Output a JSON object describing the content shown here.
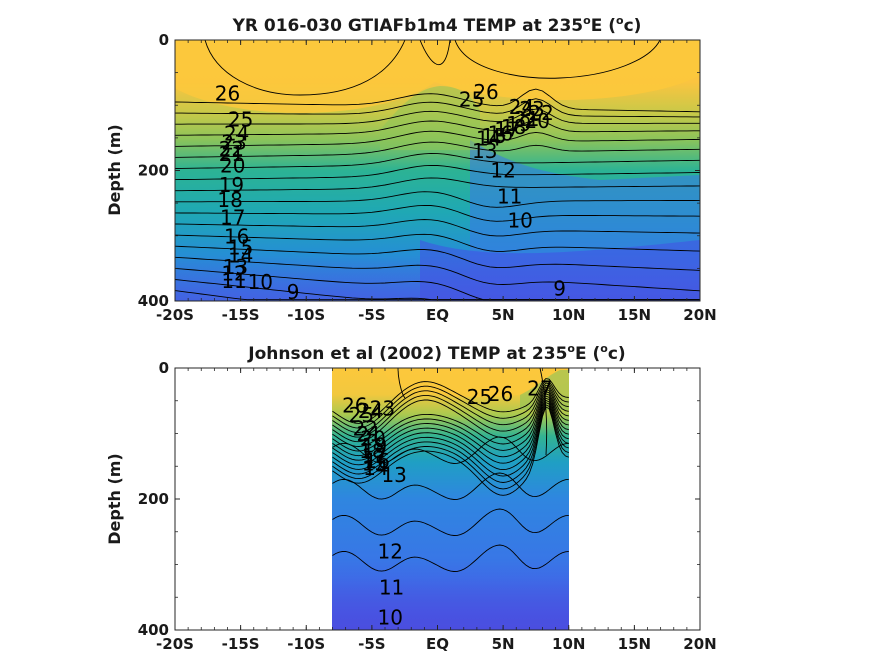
{
  "colors": {
    "warm": "#fcc83c",
    "mid_green": "#8cc45a",
    "teal": "#22b0a0",
    "blue": "#3a78e6",
    "deep": "#4a4ee0"
  },
  "chart_data": [
    {
      "type": "heatmap",
      "subtype": "filled-contour",
      "title": "YR 016-030 GTIAFb1m4 TEMP at 235",
      "title_sup": "o",
      "title_after_sup": "E (",
      "title_sup2": "o",
      "title_end": "c)",
      "ylabel": "Depth (m)",
      "xlabel": "",
      "x_ticks": [
        "-20S",
        "-15S",
        "-10S",
        "-5S",
        "EQ",
        "5N",
        "10N",
        "15N",
        "20N"
      ],
      "y_ticks": [
        "0",
        "200",
        "400"
      ],
      "xlim": [
        -20,
        20
      ],
      "ylim": [
        400,
        0
      ],
      "grid": false,
      "data_x_range": [
        -20,
        20
      ],
      "contour_labels": [
        {
          "text": "26",
          "lat": -16,
          "depth": 82
        },
        {
          "text": "25",
          "lat": -15,
          "depth": 122
        },
        {
          "text": "24",
          "lat": -15.3,
          "depth": 143
        },
        {
          "text": "23",
          "lat": -15.5,
          "depth": 157
        },
        {
          "text": "22",
          "lat": -15.7,
          "depth": 167
        },
        {
          "text": "21",
          "lat": -15.7,
          "depth": 175
        },
        {
          "text": "20",
          "lat": -15.6,
          "depth": 192
        },
        {
          "text": "19",
          "lat": -15.7,
          "depth": 222
        },
        {
          "text": "18",
          "lat": -15.8,
          "depth": 245
        },
        {
          "text": "17",
          "lat": -15.6,
          "depth": 272
        },
        {
          "text": "16",
          "lat": -15.3,
          "depth": 301
        },
        {
          "text": "15",
          "lat": -15,
          "depth": 318
        },
        {
          "text": "14",
          "lat": -15,
          "depth": 330
        },
        {
          "text": "13",
          "lat": -15.4,
          "depth": 348
        },
        {
          "text": "12",
          "lat": -15.5,
          "depth": 358
        },
        {
          "text": "11",
          "lat": -15.5,
          "depth": 369
        },
        {
          "text": "10",
          "lat": -13.5,
          "depth": 371
        },
        {
          "text": "9",
          "lat": -11,
          "depth": 386
        },
        {
          "text": "26",
          "lat": 3.7,
          "depth": 80
        },
        {
          "text": "25",
          "lat": 2.6,
          "depth": 91
        },
        {
          "text": "24",
          "lat": 6.4,
          "depth": 103
        },
        {
          "text": "23",
          "lat": 7.2,
          "depth": 106
        },
        {
          "text": "22",
          "lat": 7.9,
          "depth": 112
        },
        {
          "text": "21",
          "lat": 6.8,
          "depth": 121
        },
        {
          "text": "20",
          "lat": 7.6,
          "depth": 124
        },
        {
          "text": "19",
          "lat": 6.2,
          "depth": 129
        },
        {
          "text": "18",
          "lat": 5.8,
          "depth": 133
        },
        {
          "text": "17",
          "lat": 5.3,
          "depth": 137
        },
        {
          "text": "16",
          "lat": 4.8,
          "depth": 143
        },
        {
          "text": "15",
          "lat": 4.3,
          "depth": 147
        },
        {
          "text": "14",
          "lat": 3.9,
          "depth": 151
        },
        {
          "text": "13",
          "lat": 3.6,
          "depth": 170
        },
        {
          "text": "12",
          "lat": 5,
          "depth": 200
        },
        {
          "text": "11",
          "lat": 5.5,
          "depth": 240
        },
        {
          "text": "10",
          "lat": 6.3,
          "depth": 277
        },
        {
          "text": "9",
          "lat": 9.3,
          "depth": 381
        }
      ]
    },
    {
      "type": "heatmap",
      "subtype": "filled-contour",
      "title": "Johnson et al (2002) TEMP at 235",
      "title_sup": "o",
      "title_after_sup": "E (",
      "title_sup2": "o",
      "title_end": "c)",
      "ylabel": "Depth (m)",
      "xlabel": "",
      "x_ticks": [
        "-20S",
        "-15S",
        "-10S",
        "-5S",
        "EQ",
        "5N",
        "10N",
        "15N",
        "20N"
      ],
      "y_ticks": [
        "0",
        "200",
        "400"
      ],
      "xlim": [
        -20,
        20
      ],
      "ylim": [
        400,
        0
      ],
      "grid": false,
      "data_x_range": [
        -8,
        10
      ],
      "contour_labels": [
        {
          "text": "26",
          "lat": -6.3,
          "depth": 57
        },
        {
          "text": "25",
          "lat": -5.8,
          "depth": 72
        },
        {
          "text": "24",
          "lat": -5.1,
          "depth": 66
        },
        {
          "text": "23",
          "lat": -4.2,
          "depth": 62
        },
        {
          "text": "22",
          "lat": -5.5,
          "depth": 92
        },
        {
          "text": "21",
          "lat": -5.2,
          "depth": 101
        },
        {
          "text": "20",
          "lat": -4.9,
          "depth": 108
        },
        {
          "text": "19",
          "lat": -4.8,
          "depth": 118
        },
        {
          "text": "18",
          "lat": -5,
          "depth": 127
        },
        {
          "text": "17",
          "lat": -4.8,
          "depth": 134
        },
        {
          "text": "16",
          "lat": -4.6,
          "depth": 142
        },
        {
          "text": "15",
          "lat": -4.8,
          "depth": 146
        },
        {
          "text": "14",
          "lat": -4.7,
          "depth": 153
        },
        {
          "text": "13",
          "lat": -3.3,
          "depth": 163
        },
        {
          "text": "25",
          "lat": 3.2,
          "depth": 44
        },
        {
          "text": "26",
          "lat": 4.8,
          "depth": 40
        },
        {
          "text": "27",
          "lat": 7.8,
          "depth": 31
        },
        {
          "text": "12",
          "lat": -3.6,
          "depth": 280
        },
        {
          "text": "11",
          "lat": -3.5,
          "depth": 335
        },
        {
          "text": "10",
          "lat": -3.6,
          "depth": 381
        }
      ]
    }
  ]
}
